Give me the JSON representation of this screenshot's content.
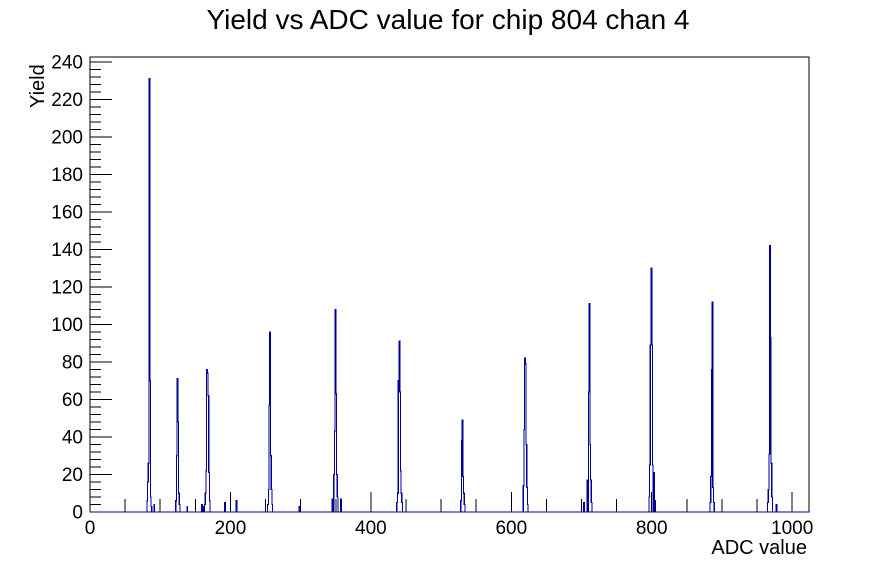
{
  "page": {
    "background": "#ffffff"
  },
  "chart_data": {
    "type": "histogram",
    "title": "Yield vs ADC value for chip 804 chan 4",
    "xlabel": "ADC value",
    "ylabel": "Yield",
    "xlim": [
      0,
      1024
    ],
    "ylim": [
      0,
      242.55
    ],
    "x_major_ticks": [
      0,
      200,
      400,
      600,
      800,
      1000
    ],
    "x_minor_step": 50,
    "y_major_ticks": [
      0,
      20,
      40,
      60,
      80,
      100,
      120,
      140,
      160,
      180,
      200,
      220,
      240
    ],
    "y_minor_step": 4,
    "grid": false,
    "legend": null,
    "line_color": "#000099",
    "axis_color": "#000000",
    "background_color": "#ffffff",
    "peaks_summary": [
      {
        "adc": 84,
        "yield": 231
      },
      {
        "adc": 124,
        "yield": 71
      },
      {
        "adc": 166,
        "yield": 76
      },
      {
        "adc": 256,
        "yield": 96
      },
      {
        "adc": 349,
        "yield": 108
      },
      {
        "adc": 440,
        "yield": 91
      },
      {
        "adc": 530,
        "yield": 49
      },
      {
        "adc": 619,
        "yield": 82
      },
      {
        "adc": 711,
        "yield": 111
      },
      {
        "adc": 799,
        "yield": 130
      },
      {
        "adc": 886,
        "yield": 112
      },
      {
        "adc": 968,
        "yield": 142
      }
    ],
    "bins": [
      [
        81,
        6
      ],
      [
        82,
        16
      ],
      [
        83,
        26
      ],
      [
        84,
        231
      ],
      [
        85,
        70
      ],
      [
        86,
        8
      ],
      [
        87,
        3
      ],
      [
        91,
        4
      ],
      [
        122,
        6
      ],
      [
        123,
        30
      ],
      [
        124,
        71
      ],
      [
        125,
        48
      ],
      [
        126,
        10
      ],
      [
        127,
        4
      ],
      [
        138,
        3
      ],
      [
        159,
        4
      ],
      [
        161,
        3
      ],
      [
        163,
        4
      ],
      [
        164,
        10
      ],
      [
        165,
        22
      ],
      [
        166,
        76
      ],
      [
        167,
        74
      ],
      [
        168,
        62
      ],
      [
        169,
        21
      ],
      [
        170,
        6
      ],
      [
        192,
        5
      ],
      [
        208,
        6
      ],
      [
        253,
        4
      ],
      [
        254,
        12
      ],
      [
        255,
        57
      ],
      [
        256,
        96
      ],
      [
        257,
        30
      ],
      [
        258,
        12
      ],
      [
        259,
        4
      ],
      [
        298,
        3
      ],
      [
        345,
        7
      ],
      [
        347,
        20
      ],
      [
        348,
        43
      ],
      [
        349,
        108
      ],
      [
        350,
        63
      ],
      [
        351,
        20
      ],
      [
        352,
        8
      ],
      [
        357,
        7
      ],
      [
        437,
        5
      ],
      [
        438,
        10
      ],
      [
        439,
        70
      ],
      [
        440,
        91
      ],
      [
        441,
        64
      ],
      [
        442,
        22
      ],
      [
        443,
        10
      ],
      [
        444,
        5
      ],
      [
        528,
        6
      ],
      [
        529,
        38
      ],
      [
        530,
        49
      ],
      [
        531,
        19
      ],
      [
        532,
        10
      ],
      [
        533,
        4
      ],
      [
        617,
        14
      ],
      [
        618,
        44
      ],
      [
        619,
        82
      ],
      [
        620,
        79
      ],
      [
        621,
        36
      ],
      [
        622,
        13
      ],
      [
        623,
        4
      ],
      [
        703,
        5
      ],
      [
        708,
        17
      ],
      [
        710,
        64
      ],
      [
        711,
        111
      ],
      [
        712,
        36
      ],
      [
        713,
        17
      ],
      [
        714,
        5
      ],
      [
        796,
        8
      ],
      [
        797,
        25
      ],
      [
        798,
        89
      ],
      [
        799,
        130
      ],
      [
        800,
        89
      ],
      [
        801,
        25
      ],
      [
        803,
        21
      ],
      [
        804,
        6
      ],
      [
        883,
        5
      ],
      [
        884,
        19
      ],
      [
        885,
        76
      ],
      [
        886,
        112
      ],
      [
        887,
        13
      ],
      [
        888,
        5
      ],
      [
        965,
        5
      ],
      [
        966,
        12
      ],
      [
        967,
        31
      ],
      [
        968,
        142
      ],
      [
        969,
        93
      ],
      [
        970,
        26
      ],
      [
        971,
        8
      ],
      [
        977,
        4
      ]
    ]
  }
}
